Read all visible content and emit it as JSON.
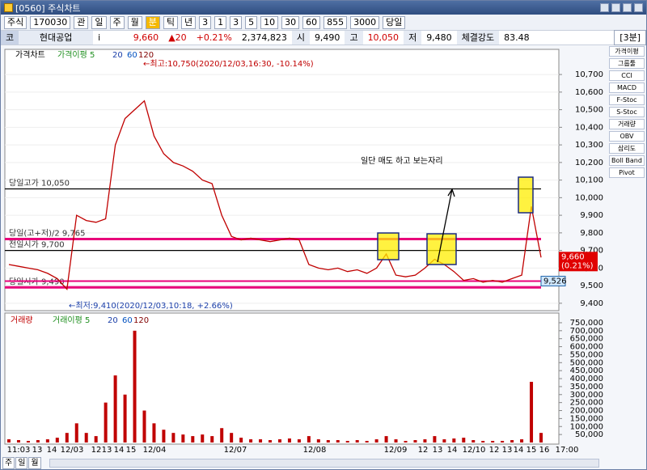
{
  "window": {
    "title": "[0560] 주식차트"
  },
  "toolbar": [
    "주식",
    "170030",
    "관",
    "일",
    "주",
    "월",
    "분",
    "틱",
    "년",
    "3",
    "1",
    "3",
    "5",
    "10",
    "30",
    "60",
    "855",
    "3000",
    "당일"
  ],
  "info": [
    "코",
    "현대공업",
    "i",
    "9,660",
    "▲20",
    "+0.21%",
    "2,374,823",
    "시",
    "9,490",
    "고",
    "10,050",
    "저",
    "9,480",
    "체결강도",
    "83.48",
    "[3분]"
  ],
  "price_chart": {
    "legend": [
      "가격차트",
      "가격이평 5",
      "20",
      "60",
      "120"
    ],
    "ylim": [
      9358,
      10843
    ],
    "yticks": [
      {
        "value": 10700,
        "label": "10,700"
      },
      {
        "value": 10600,
        "label": "10,600"
      },
      {
        "value": 10500,
        "label": "10,500"
      },
      {
        "value": 10400,
        "label": "10,400"
      },
      {
        "value": 10300,
        "label": "10,300"
      },
      {
        "value": 10200,
        "label": "10,200"
      },
      {
        "value": 10100,
        "label": "10,100"
      },
      {
        "value": 10000,
        "label": "10,000"
      },
      {
        "value": 9900,
        "label": "9,900"
      },
      {
        "value": 9800,
        "label": "9,800"
      },
      {
        "value": 9700,
        "label": "9,700"
      },
      {
        "value": 9600,
        "label": "9,600"
      },
      {
        "value": 9500,
        "label": "9,500"
      },
      {
        "value": 9400,
        "label": "9,400"
      }
    ],
    "values": [
      9620,
      9610,
      9600,
      9590,
      9570,
      9540,
      9480,
      9900,
      9870,
      9860,
      9880,
      10300,
      10450,
      10500,
      10550,
      10350,
      10250,
      10200,
      10180,
      10150,
      10100,
      10080,
      9900,
      9780,
      9760,
      9770,
      9760,
      9750,
      9760,
      9770,
      9760,
      9620,
      9600,
      9590,
      9600,
      9580,
      9590,
      9570,
      9600,
      9680,
      9560,
      9550,
      9560,
      9600,
      9650,
      9620,
      9580,
      9530,
      9540,
      9520,
      9530,
      9520,
      9540,
      9560,
      9950,
      9660
    ],
    "color": "#c00000",
    "ref_lines": [
      {
        "value": 10050,
        "label": "당일고가 10,050",
        "color": "#000000"
      },
      {
        "value": 9765,
        "label": "당일(고+저)/2 9,765",
        "color": "#e8007a"
      },
      {
        "value": 9700,
        "label": "전일시가 9,700",
        "color": "#000000"
      },
      {
        "value": 9490,
        "label": "당일시가 9,490",
        "color": "#e8007a"
      }
    ],
    "high_note": "←최고:10,750(2020/12/03,16:30, -10.14%)",
    "low_note": "←최저:9,410(2020/12/03,10:18, +2.66%)",
    "current": {
      "value": 9660,
      "label": "9,660",
      "change": "(0.21%)"
    },
    "marker": {
      "value": 9526,
      "label": "9,526"
    },
    "annotation": "일단 매도 하고 보는자리"
  },
  "volume_chart": {
    "legend": [
      "거래량",
      "거래이평 5",
      "20",
      "60",
      "120"
    ],
    "ylim": [
      0,
      770000
    ],
    "yticks": [
      {
        "value": 750000,
        "label": "750,000"
      },
      {
        "value": 700000,
        "label": "700,000"
      },
      {
        "value": 650000,
        "label": "650,000"
      },
      {
        "value": 600000,
        "label": "600,000"
      },
      {
        "value": 550000,
        "label": "550,000"
      },
      {
        "value": 500000,
        "label": "500,000"
      },
      {
        "value": 450000,
        "label": "450,000"
      },
      {
        "value": 400000,
        "label": "400,000"
      },
      {
        "value": 350000,
        "label": "350,000"
      },
      {
        "value": 300000,
        "label": "300,000"
      },
      {
        "value": 250000,
        "label": "250,000"
      },
      {
        "value": 200000,
        "label": "200,000"
      },
      {
        "value": 150000,
        "label": "150,000"
      },
      {
        "value": 100000,
        "label": "100,000"
      },
      {
        "value": 50000,
        "label": "50,000"
      }
    ],
    "values": [
      20000,
      15000,
      10000,
      15000,
      20000,
      30000,
      60000,
      120000,
      60000,
      40000,
      250000,
      420000,
      300000,
      700000,
      200000,
      120000,
      80000,
      60000,
      50000,
      40000,
      50000,
      40000,
      90000,
      60000,
      30000,
      20000,
      20000,
      15000,
      20000,
      25000,
      20000,
      40000,
      20000,
      15000,
      15000,
      10000,
      15000,
      10000,
      20000,
      40000,
      20000,
      10000,
      15000,
      20000,
      40000,
      20000,
      25000,
      30000,
      15000,
      10000,
      10000,
      10000,
      15000,
      20000,
      380000,
      60000
    ],
    "color": "#c00000"
  },
  "x_labels": [
    "11:03",
    "13",
    "14",
    "12/03",
    "12",
    "13",
    "14",
    "15",
    "12/04",
    "12/07",
    "12/08",
    "12/09",
    "12",
    "13",
    "14",
    "12/10",
    "12",
    "13",
    "14",
    "15",
    "16",
    "17:00"
  ],
  "side_tools": [
    "가격이평",
    "그룹툴",
    "CCI",
    "MACD",
    "F-Stoc",
    "S-Stoc",
    "거래량",
    "OBV",
    "삼리도",
    "Boll Band",
    "Pivot"
  ],
  "tabs": [
    "주",
    "일",
    "월"
  ]
}
